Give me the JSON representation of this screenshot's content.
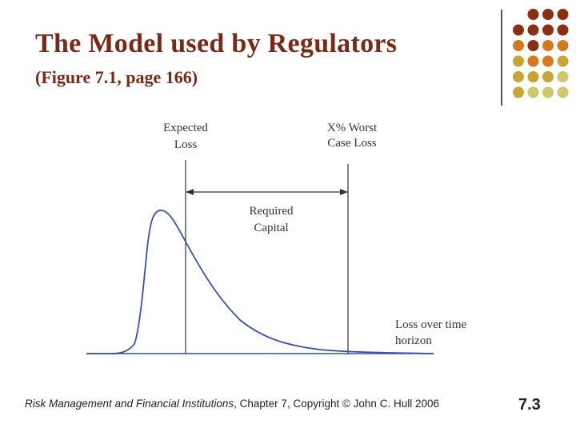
{
  "slide": {
    "title": "The Model used by Regulators",
    "subtitle": "(Figure 7.1, page 166)",
    "page_number": "7.3"
  },
  "footer": {
    "book": "Risk Management and Financial Institutions",
    "chapter": ", Chapter 7",
    "copyright": ", Copyright © John C. Hull 2006"
  },
  "diagram": {
    "expected_loss_label": [
      "Expected",
      "Loss"
    ],
    "worst_case_label": [
      "X% Worst",
      "Case Loss"
    ],
    "required_capital_label": [
      "Required",
      "Capital"
    ],
    "axis_label": [
      "Loss over time",
      "horizon"
    ]
  },
  "colors": {
    "title": "#7a2a14",
    "curve": "#3a4fb5",
    "dot_dark": "#8b2f14",
    "dot_orange": "#d47a1e",
    "dot_olive": "#c9a533",
    "dot_light": "#cfc86a"
  }
}
